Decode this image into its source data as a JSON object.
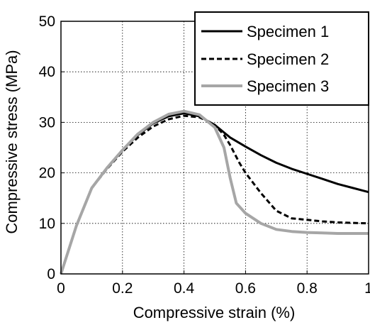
{
  "chart_data": {
    "type": "line",
    "title": "",
    "xlabel": "Compressive strain (%)",
    "ylabel": "Compressive stress (MPa)",
    "xlim": [
      0,
      1
    ],
    "ylim": [
      0,
      50
    ],
    "xticks": [
      0,
      0.2,
      0.4,
      0.6,
      0.8,
      1
    ],
    "xtick_labels": [
      "0",
      "0.2",
      "0.4",
      "0.6",
      "0.8",
      "1"
    ],
    "yticks": [
      0,
      10,
      20,
      30,
      40,
      50
    ],
    "ytick_labels": [
      "0",
      "10",
      "20",
      "30",
      "40",
      "50"
    ],
    "grid": true,
    "legend_position": "top-right",
    "series": [
      {
        "name": "Specimen 1",
        "color": "#000000",
        "style": "solid",
        "x": [
          0,
          0.05,
          0.1,
          0.15,
          0.2,
          0.25,
          0.3,
          0.35,
          0.4,
          0.45,
          0.5,
          0.55,
          0.6,
          0.65,
          0.7,
          0.75,
          0.8,
          0.85,
          0.9,
          0.95,
          1.0
        ],
        "y": [
          0,
          9.5,
          17,
          21,
          24.5,
          27.5,
          29.8,
          31.2,
          31.8,
          31.2,
          29.5,
          27,
          25.2,
          23.5,
          22,
          20.8,
          19.8,
          18.8,
          17.8,
          17,
          16.2
        ]
      },
      {
        "name": "Specimen 2",
        "color": "#000000",
        "style": "dashed",
        "x": [
          0,
          0.05,
          0.1,
          0.15,
          0.2,
          0.25,
          0.3,
          0.35,
          0.4,
          0.45,
          0.5,
          0.53,
          0.55,
          0.58,
          0.6,
          0.65,
          0.7,
          0.75,
          0.8,
          0.85,
          0.9,
          0.95,
          1.0
        ],
        "y": [
          0,
          9.5,
          17,
          20.8,
          24.2,
          27,
          29.2,
          30.6,
          31.3,
          31,
          29.5,
          27.5,
          25.5,
          22,
          20,
          16,
          12.5,
          11,
          10.7,
          10.4,
          10.2,
          10.1,
          10
        ]
      },
      {
        "name": "Specimen 3",
        "color": "#a6a6a6",
        "style": "solid",
        "x": [
          0,
          0.05,
          0.1,
          0.15,
          0.2,
          0.25,
          0.3,
          0.35,
          0.4,
          0.45,
          0.5,
          0.53,
          0.55,
          0.57,
          0.6,
          0.65,
          0.7,
          0.75,
          0.8,
          0.85,
          0.9,
          0.95,
          1.0
        ],
        "y": [
          0,
          9.5,
          17,
          21,
          24.5,
          27.7,
          30,
          31.6,
          32.2,
          31.5,
          29,
          25,
          19,
          14,
          12,
          10,
          8.8,
          8.4,
          8.2,
          8.1,
          8.0,
          8.0,
          8.0
        ]
      }
    ]
  }
}
